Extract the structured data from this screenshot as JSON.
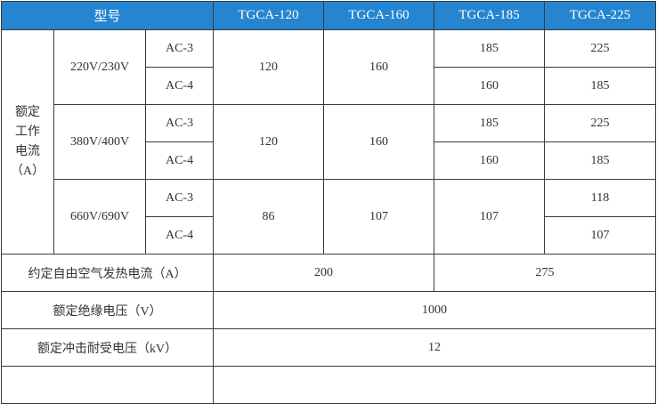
{
  "header": {
    "model_label": "型号",
    "models": [
      "TGCA-120",
      "TGCA-160",
      "TGCA-185",
      "TGCA-225"
    ]
  },
  "rated_current": {
    "label_lines": [
      "额定",
      "工作",
      "电流",
      "（A）"
    ],
    "groups": [
      {
        "voltage": "220V/230V",
        "rows": [
          {
            "cat": "AC-3",
            "v185": "185",
            "v225": "225"
          },
          {
            "cat": "AC-4",
            "v185": "160",
            "v225": "185"
          }
        ],
        "v120": "120",
        "v160": "160"
      },
      {
        "voltage": "380V/400V",
        "rows": [
          {
            "cat": "AC-3",
            "v185": "185",
            "v225": "225"
          },
          {
            "cat": "AC-4",
            "v185": "160",
            "v225": "185"
          }
        ],
        "v120": "120",
        "v160": "160"
      },
      {
        "voltage": "660V/690V",
        "rows": [
          {
            "cat": "AC-3",
            "v225": "118"
          },
          {
            "cat": "AC-4",
            "v225": "107"
          }
        ],
        "v120": "86",
        "v160": "107",
        "v185": "107"
      }
    ]
  },
  "thermal": {
    "label": "约定自由空气发热电流（A）",
    "a": "200",
    "b": "275"
  },
  "insulation": {
    "label": "额定绝缘电压（V）",
    "value": "1000"
  },
  "impulse": {
    "label": "额定冲击耐受电压（kV）",
    "value": "12"
  },
  "colors": {
    "header_bg": "#2585d0",
    "header_text": "#ffffff",
    "border": "#3a3a3a"
  }
}
